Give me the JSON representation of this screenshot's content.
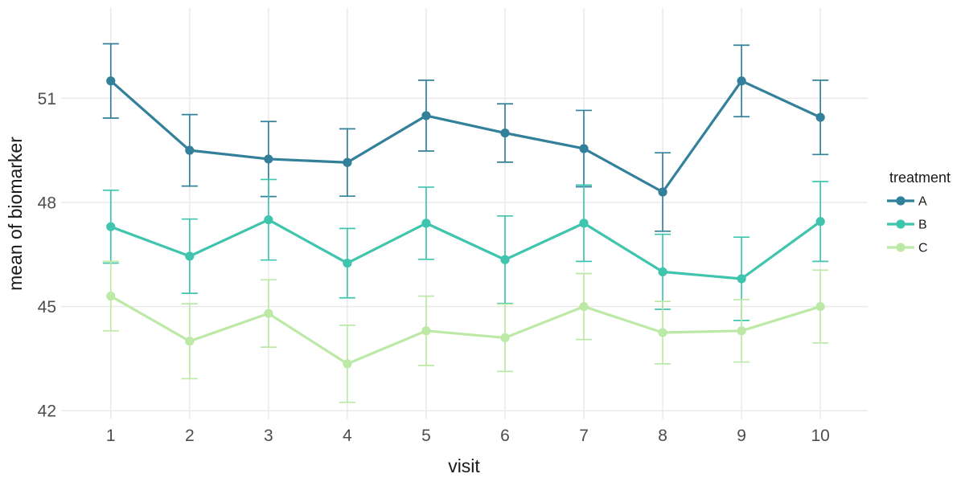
{
  "chart_data": {
    "type": "line",
    "title": "",
    "xlabel": "visit",
    "ylabel": "mean of biomarker",
    "legend_title": "treatment",
    "legend_position": "right",
    "grid": "major-only",
    "background_color": "#ffffff",
    "gridline_color": "#e8e8e8",
    "tick_label_color": "#4d4d4d",
    "axis_title_color": "#1a1a1a",
    "x": [
      1,
      2,
      3,
      4,
      5,
      6,
      7,
      8,
      9,
      10
    ],
    "xticks": [
      1,
      2,
      3,
      4,
      5,
      6,
      7,
      8,
      9,
      10
    ],
    "yticks": [
      42,
      45,
      48,
      51
    ],
    "xlim": [
      0.37,
      10.6
    ],
    "ylim": [
      41.75,
      53.6
    ],
    "marker": "point-with-errorbar",
    "series": [
      {
        "name": "A",
        "color": "#33809a",
        "values": [
          51.5,
          49.5,
          49.25,
          49.15,
          50.5,
          50.0,
          49.55,
          48.3,
          51.5,
          50.45
        ],
        "errors": [
          1.07,
          1.03,
          1.08,
          0.97,
          1.02,
          0.84,
          1.1,
          1.13,
          1.03,
          1.07
        ]
      },
      {
        "name": "B",
        "color": "#3fc4ae",
        "values": [
          47.3,
          46.45,
          47.5,
          46.25,
          47.4,
          46.35,
          47.4,
          46.0,
          45.8,
          47.45
        ],
        "errors": [
          1.05,
          1.07,
          1.16,
          1.0,
          1.04,
          1.26,
          1.1,
          1.08,
          1.2,
          1.15
        ]
      },
      {
        "name": "C",
        "color": "#bce9a6",
        "values": [
          45.3,
          44.0,
          44.8,
          43.35,
          44.3,
          44.1,
          45.0,
          44.25,
          44.3,
          45.0
        ],
        "errors": [
          1.0,
          1.08,
          0.97,
          1.11,
          1.0,
          0.97,
          0.95,
          0.9,
          0.9,
          1.05
        ]
      }
    ]
  }
}
